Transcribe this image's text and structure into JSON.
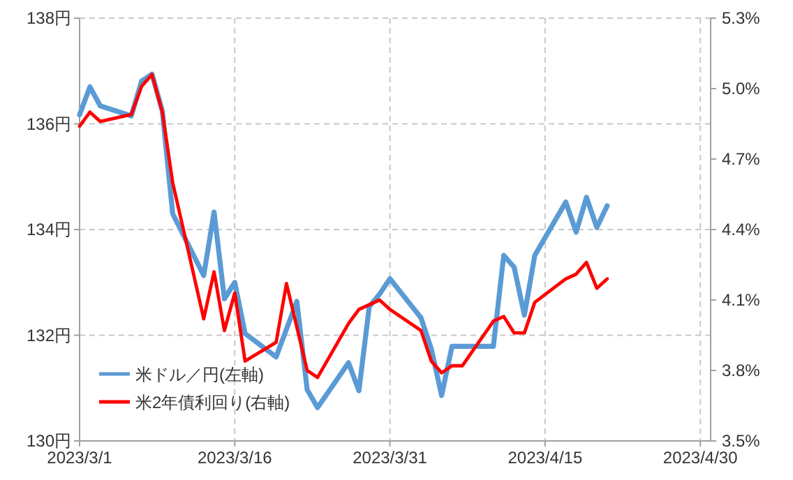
{
  "chart_data": {
    "type": "line",
    "x": [
      "2023-03-01",
      "2023-03-02",
      "2023-03-03",
      "2023-03-06",
      "2023-03-07",
      "2023-03-08",
      "2023-03-09",
      "2023-03-10",
      "2023-03-13",
      "2023-03-14",
      "2023-03-15",
      "2023-03-16",
      "2023-03-17",
      "2023-03-20",
      "2023-03-22",
      "2023-03-23",
      "2023-03-24",
      "2023-03-27",
      "2023-03-28",
      "2023-03-29",
      "2023-03-30",
      "2023-03-31",
      "2023-04-03",
      "2023-04-04",
      "2023-04-05",
      "2023-04-06",
      "2023-04-10",
      "2023-04-11",
      "2023-04-12",
      "2023-04-13",
      "2023-04-14",
      "2023-04-17",
      "2023-04-18",
      "2023-04-19",
      "2023-04-20",
      "2023-04-21"
    ],
    "series": [
      {
        "name": "米ドル／円(左軸)",
        "color": "#5b9bd5",
        "values": [
          136.17,
          136.7,
          136.34,
          136.15,
          136.81,
          136.94,
          136.24,
          134.3,
          133.13,
          134.33,
          132.69,
          133.0,
          132.03,
          131.59,
          132.64,
          130.97,
          130.63,
          131.48,
          130.95,
          132.54,
          132.78,
          133.07,
          132.33,
          131.74,
          130.86,
          131.79,
          131.79,
          133.51,
          133.29,
          132.38,
          133.51,
          134.52,
          133.95,
          134.61,
          134.04,
          134.45
        ]
      },
      {
        "name": "米2年債利回り(右軸)",
        "color": "#ff0000",
        "axis": "y2",
        "x": [
          "2023-03-01",
          "2023-03-02",
          "2023-03-03",
          "2023-03-06",
          "2023-03-07",
          "2023-03-08",
          "2023-03-09",
          "2023-03-10",
          "2023-03-13",
          "2023-03-14",
          "2023-03-15",
          "2023-03-16",
          "2023-03-17",
          "2023-03-20",
          "2023-03-21",
          "2023-03-23",
          "2023-03-24",
          "2023-03-27",
          "2023-03-28",
          "2023-03-29",
          "2023-03-30",
          "2023-03-31",
          "2023-04-03",
          "2023-04-04",
          "2023-04-05",
          "2023-04-06",
          "2023-04-07",
          "2023-04-10",
          "2023-04-11",
          "2023-04-12",
          "2023-04-13",
          "2023-04-14",
          "2023-04-17",
          "2023-04-18",
          "2023-04-19",
          "2023-04-20",
          "2023-04-21"
        ],
        "values": [
          4.84,
          4.9,
          4.86,
          4.89,
          5.01,
          5.06,
          4.9,
          4.6,
          4.02,
          4.22,
          3.97,
          4.13,
          3.84,
          3.92,
          4.17,
          3.8,
          3.77,
          4.0,
          4.06,
          4.08,
          4.1,
          4.06,
          3.97,
          3.84,
          3.79,
          3.82,
          3.82,
          4.01,
          4.03,
          3.96,
          3.96,
          4.09,
          4.19,
          4.21,
          4.26,
          4.15,
          4.19
        ]
      }
    ],
    "xlim": [
      "2023-03-01",
      "2023-05-01"
    ],
    "xticks": [
      {
        "value": "2023-03-01",
        "label": "2023/3/1"
      },
      {
        "value": "2023-03-16",
        "label": "2023/3/16"
      },
      {
        "value": "2023-03-31",
        "label": "2023/3/31"
      },
      {
        "value": "2023-04-15",
        "label": "2023/4/15"
      },
      {
        "value": "2023-04-30",
        "label": "2023/4/30"
      }
    ],
    "ylim": [
      130,
      138
    ],
    "yticks": [
      {
        "value": 130,
        "label": "130円"
      },
      {
        "value": 132,
        "label": "132円"
      },
      {
        "value": 134,
        "label": "134円"
      },
      {
        "value": 136,
        "label": "136円"
      },
      {
        "value": 138,
        "label": "138円"
      }
    ],
    "y2lim": [
      3.5,
      5.3
    ],
    "y2ticks": [
      {
        "value": 3.5,
        "label": "3.5%"
      },
      {
        "value": 3.8,
        "label": "3.8%"
      },
      {
        "value": 4.1,
        "label": "4.1%"
      },
      {
        "value": 4.4,
        "label": "4.4%"
      },
      {
        "value": 4.7,
        "label": "4.7%"
      },
      {
        "value": 5.0,
        "label": "5.0%"
      },
      {
        "value": 5.3,
        "label": "5.3%"
      }
    ],
    "grid": true,
    "legend": "bottom left",
    "line_style": "solid"
  }
}
